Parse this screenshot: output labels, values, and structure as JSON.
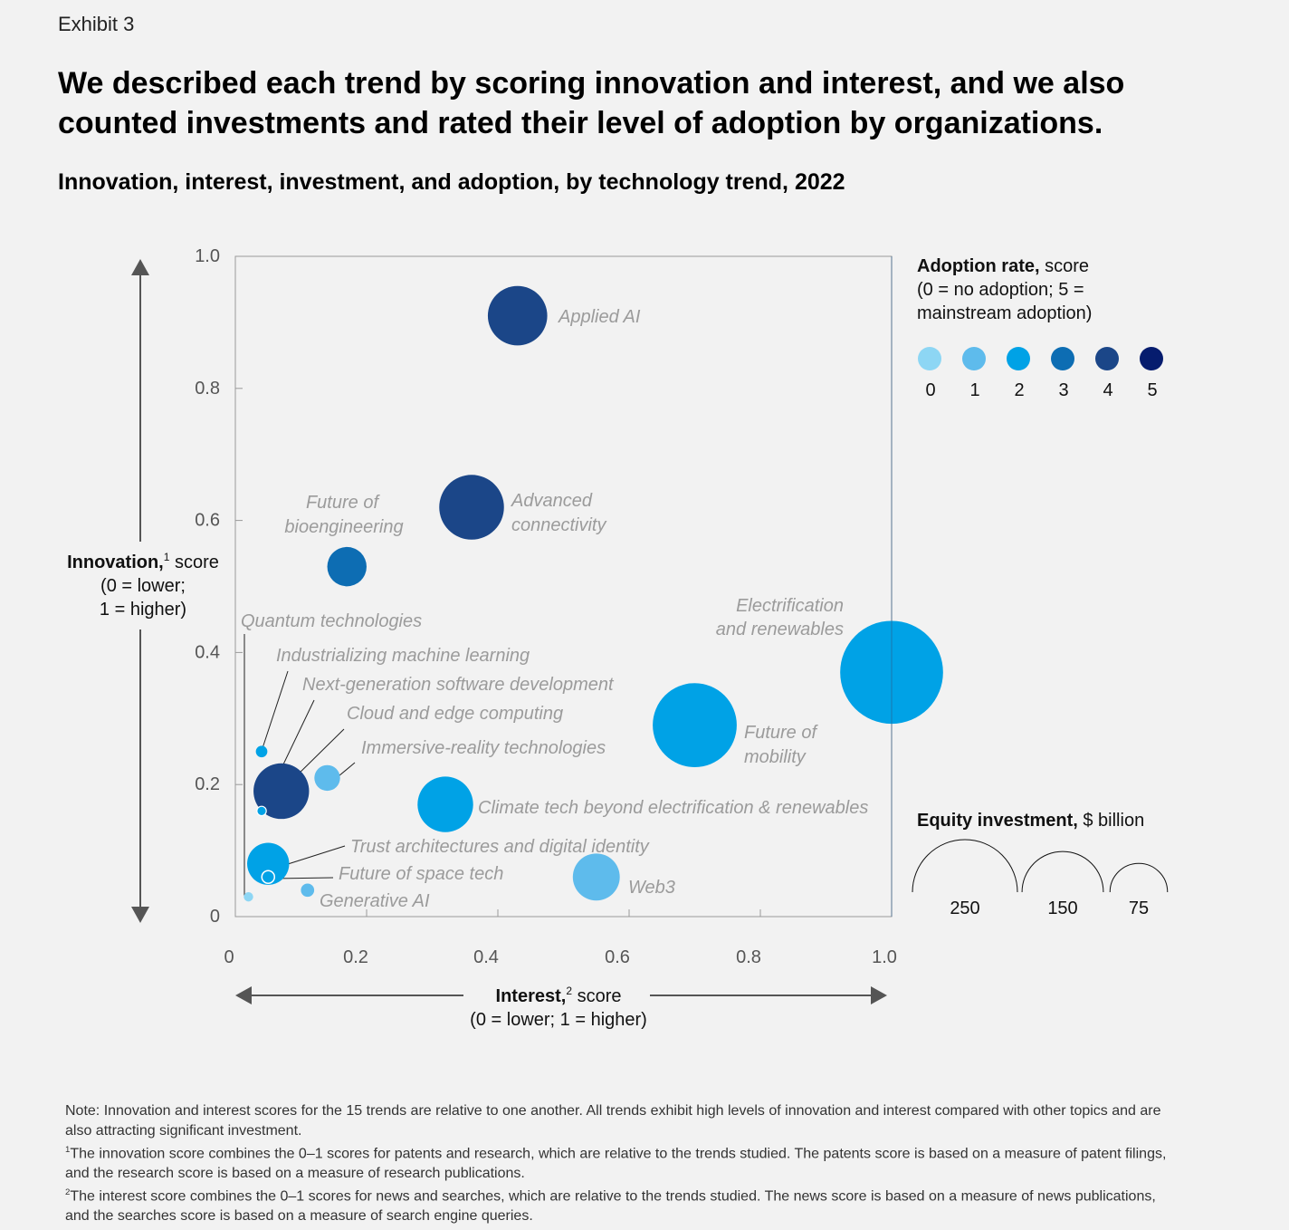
{
  "exhibit_label": "Exhibit 3",
  "headline": "We described each trend by scoring innovation and interest, and we also counted investments and rated their level of adoption by organizations.",
  "subtitle": "Innovation, interest, investment, and adoption, by technology trend, 2022",
  "chart_data": {
    "type": "scatter",
    "title": "Innovation, interest, investment, and adoption, by technology trend, 2022",
    "xlabel": {
      "bold": "Interest,",
      "sup": "2",
      "rest": " score",
      "line2": "(0 = lower; 1 = higher)"
    },
    "ylabel": {
      "bold": "Innovation,",
      "sup": "1",
      "rest": " score",
      "line2": "(0 = lower;",
      "line3": "1 = higher)"
    },
    "xlim": [
      0,
      1
    ],
    "ylim": [
      0,
      1
    ],
    "x_ticks": [
      "0",
      "0.2",
      "0.4",
      "0.6",
      "0.8",
      "1.0"
    ],
    "y_ticks": [
      "0",
      "0.2",
      "0.4",
      "0.6",
      "0.8",
      "1.0"
    ],
    "grid": false,
    "adoption_legend": {
      "title_bold": "Adoption rate,",
      "title_rest": " score",
      "line2": "(0 = no adoption; 5 =",
      "line3": "mainstream adoption)",
      "levels": [
        "0",
        "1",
        "2",
        "3",
        "4",
        "5"
      ],
      "colors": [
        "#8dd6f4",
        "#5ebbec",
        "#00a2e6",
        "#0d6db3",
        "#1b4688",
        "#061c6e"
      ]
    },
    "investment_legend": {
      "title_bold": "Equity investment,",
      "title_rest": " $ billion",
      "sizes": [
        250,
        150,
        75
      ],
      "labels": [
        "250",
        "150",
        "75"
      ]
    },
    "points": [
      {
        "name": "Applied AI",
        "x": 0.43,
        "y": 0.91,
        "adoption": 4,
        "investment": 80
      },
      {
        "name": "Advanced connectivity",
        "x": 0.36,
        "y": 0.62,
        "adoption": 4,
        "investment": 95
      },
      {
        "name": "Future of bioengineering",
        "x": 0.17,
        "y": 0.53,
        "adoption": 3,
        "investment": 35
      },
      {
        "name": "Electrification and renewables",
        "x": 1.0,
        "y": 0.37,
        "adoption": 2,
        "investment": 240
      },
      {
        "name": "Future of mobility",
        "x": 0.7,
        "y": 0.29,
        "adoption": 2,
        "investment": 160
      },
      {
        "name": "Climate tech beyond electrification & renewables",
        "x": 0.32,
        "y": 0.17,
        "adoption": 2,
        "investment": 70
      },
      {
        "name": "Web3",
        "x": 0.55,
        "y": 0.06,
        "adoption": 1,
        "investment": 50
      },
      {
        "name": "Quantum technologies",
        "x": 0.02,
        "y": 0.03,
        "adoption": 0,
        "investment": 2
      },
      {
        "name": "Industrializing machine learning",
        "x": 0.04,
        "y": 0.25,
        "adoption": 2,
        "investment": 3
      },
      {
        "name": "Next-generation software development",
        "x": 0.04,
        "y": 0.16,
        "adoption": 2,
        "investment": 2
      },
      {
        "name": "Cloud and edge computing",
        "x": 0.07,
        "y": 0.19,
        "adoption": 4,
        "investment": 70
      },
      {
        "name": "Immersive-reality technologies",
        "x": 0.14,
        "y": 0.21,
        "adoption": 1,
        "investment": 15
      },
      {
        "name": "Trust architectures and digital identity",
        "x": 0.05,
        "y": 0.08,
        "adoption": 2,
        "investment": 40
      },
      {
        "name": "Future of space tech",
        "x": 0.05,
        "y": 0.06,
        "adoption": 2,
        "investment": 3
      },
      {
        "name": "Generative AI",
        "x": 0.11,
        "y": 0.04,
        "adoption": 1,
        "investment": 4
      }
    ]
  },
  "notes": {
    "note": "Note: Innovation and interest scores for the 15 trends are relative to one another. All trends exhibit high levels of innovation and interest compared with other topics and are also attracting significant investment.",
    "fn1_mark": "1",
    "fn1": "The innovation score combines the 0–1 scores for patents and research, which are relative to the trends studied. The patents score is based on a measure of patent filings, and the research score is based on a measure of research publications.",
    "fn2_mark": "2",
    "fn2": "The interest score combines the 0–1 scores for news and searches, which are relative to the trends studied. The news score is based on a measure of news publications, and the searches score is based on a measure of search engine queries."
  }
}
